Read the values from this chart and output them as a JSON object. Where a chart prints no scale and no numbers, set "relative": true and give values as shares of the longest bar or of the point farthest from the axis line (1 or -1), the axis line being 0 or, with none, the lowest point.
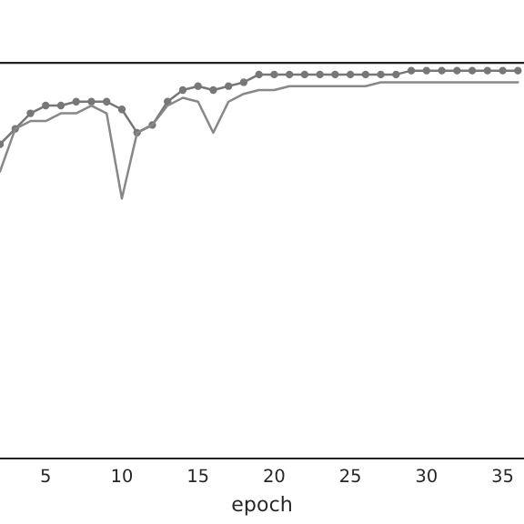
{
  "chart_data": {
    "type": "line",
    "relative": true,
    "xlabel": "epoch",
    "x": [
      2,
      3,
      4,
      5,
      6,
      7,
      8,
      9,
      10,
      11,
      12,
      13,
      14,
      15,
      16,
      17,
      18,
      19,
      20,
      21,
      22,
      23,
      24,
      25,
      26,
      27,
      28,
      29,
      30,
      31,
      32,
      33,
      34,
      35,
      36
    ],
    "xlim": [
      2,
      36.4
    ],
    "xticks": [
      5,
      10,
      15,
      20,
      25,
      30,
      35
    ],
    "grid": false,
    "legend": false,
    "series": [
      {
        "color": "#777777",
        "marker": "circle",
        "values": [
          0.81,
          0.85,
          0.89,
          0.91,
          0.91,
          0.92,
          0.92,
          0.92,
          0.9,
          0.84,
          0.86,
          0.92,
          0.95,
          0.96,
          0.95,
          0.96,
          0.97,
          0.99,
          0.99,
          0.99,
          0.99,
          0.99,
          0.99,
          0.99,
          0.99,
          0.99,
          0.99,
          1.0,
          1.0,
          1.0,
          1.0,
          1.0,
          1.0,
          1.0,
          1.0
        ]
      },
      {
        "color": "#888888",
        "marker": "none",
        "values": [
          0.74,
          0.85,
          0.87,
          0.87,
          0.89,
          0.89,
          0.91,
          0.89,
          0.67,
          0.84,
          0.86,
          0.91,
          0.93,
          0.92,
          0.84,
          0.92,
          0.94,
          0.95,
          0.95,
          0.96,
          0.96,
          0.96,
          0.96,
          0.96,
          0.96,
          0.97,
          0.97,
          0.97,
          0.97,
          0.97,
          0.97,
          0.97,
          0.97,
          0.97,
          0.97
        ]
      }
    ]
  }
}
